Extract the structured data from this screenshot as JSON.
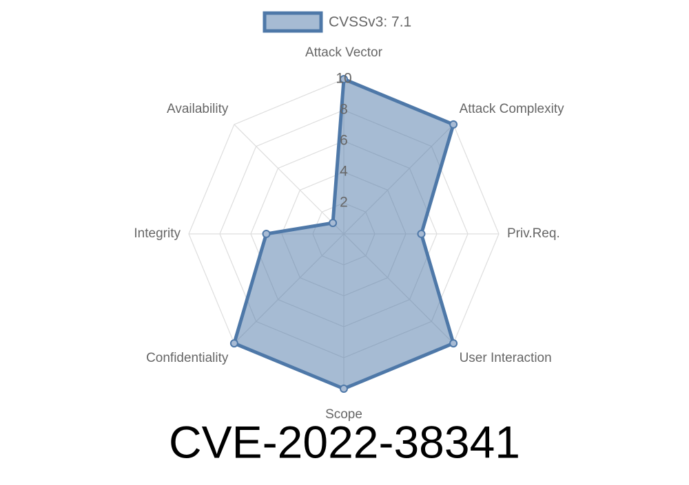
{
  "chart_data": {
    "type": "radar",
    "title": "CVE-2022-38341",
    "categories": [
      "Attack Vector",
      "Attack Complexity",
      "Priv.Req.",
      "User Interaction",
      "Scope",
      "Confidentiality",
      "Integrity",
      "Availability"
    ],
    "series": [
      {
        "name": "CVSSv3: 7.1",
        "color": "#4e78a8",
        "values": [
          10,
          10,
          5,
          10,
          10,
          10,
          5,
          1
        ]
      }
    ],
    "rlim": [
      0,
      10
    ],
    "rticks": [
      2,
      4,
      6,
      8,
      10
    ],
    "grid": true,
    "legend": "top"
  }
}
